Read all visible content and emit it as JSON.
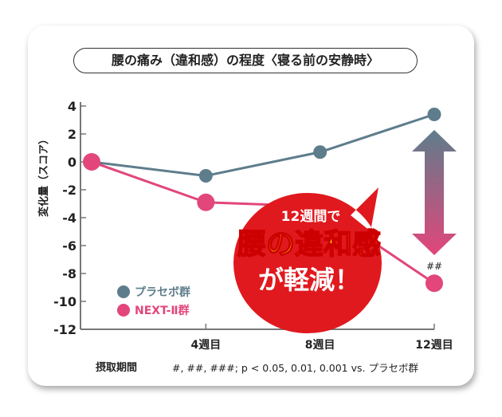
{
  "chart_data": {
    "type": "line",
    "title": "腰の痛み（違和感）の程度〈寝る前の安静時〉",
    "ylabel": "変化量（スコア）",
    "xlabel": "摂取期間",
    "x": [
      0,
      4,
      8,
      12
    ],
    "xticklabels": [
      "",
      "4週目",
      "8週目",
      "12週目"
    ],
    "yticks": [
      4,
      2,
      0,
      -2,
      -4,
      -6,
      -8,
      -10,
      -12
    ],
    "ylim": [
      -12,
      4
    ],
    "series": [
      {
        "name": "プラセボ群",
        "color": "#5e7d8c",
        "values": [
          0,
          -1.0,
          0.7,
          3.4
        ]
      },
      {
        "name": "NEXT-Ⅱ群",
        "color": "#e2467a",
        "values": [
          0,
          -2.9,
          -3.2,
          -8.7
        ]
      }
    ],
    "significance": "##",
    "footnote": "#, ##, ###; p < 0.05, 0.01, 0.001 vs. プラセボ群",
    "legend": "bottom-left",
    "callout": {
      "line1": "12週間で",
      "line2": "腰の違和感",
      "line3": "が軽減！"
    }
  }
}
